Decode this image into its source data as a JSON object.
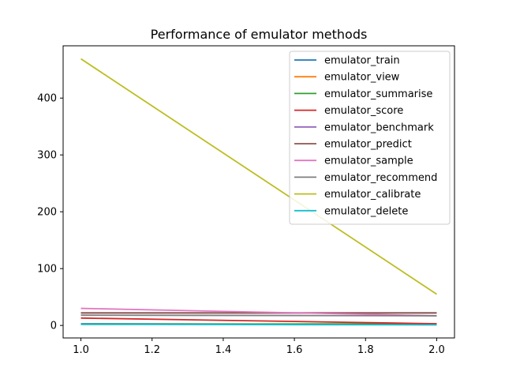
{
  "chart_data": {
    "type": "line",
    "title": "Performance of emulator methods",
    "xlabel": "",
    "ylabel": "",
    "x": [
      1.0,
      2.0
    ],
    "xlim": [
      0.95,
      2.05
    ],
    "ylim": [
      -22,
      492
    ],
    "xticks": [
      1.0,
      1.2,
      1.4,
      1.6,
      1.8,
      2.0
    ],
    "xtick_labels": [
      "1.0",
      "1.2",
      "1.4",
      "1.6",
      "1.8",
      "2.0"
    ],
    "yticks": [
      0,
      100,
      200,
      300,
      400
    ],
    "ytick_labels": [
      "0",
      "100",
      "200",
      "300",
      "400"
    ],
    "grid": false,
    "legend_position": "top-right",
    "series": [
      {
        "name": "emulator_train",
        "color": "#1f77b4",
        "values": [
          3,
          2
        ]
      },
      {
        "name": "emulator_view",
        "color": "#ff7f0e",
        "values": [
          2,
          2
        ]
      },
      {
        "name": "emulator_summarise",
        "color": "#2ca02c",
        "values": [
          2,
          3
        ]
      },
      {
        "name": "emulator_score",
        "color": "#d62728",
        "values": [
          13,
          3
        ]
      },
      {
        "name": "emulator_benchmark",
        "color": "#9467bd",
        "values": [
          22,
          22
        ]
      },
      {
        "name": "emulator_predict",
        "color": "#8c564b",
        "values": [
          22,
          22
        ]
      },
      {
        "name": "emulator_sample",
        "color": "#e377c2",
        "values": [
          30,
          17
        ]
      },
      {
        "name": "emulator_recommend",
        "color": "#7f7f7f",
        "values": [
          18,
          17
        ]
      },
      {
        "name": "emulator_calibrate",
        "color": "#bcbd22",
        "values": [
          469,
          55
        ]
      },
      {
        "name": "emulator_delete",
        "color": "#17becf",
        "values": [
          2,
          1
        ]
      }
    ]
  }
}
